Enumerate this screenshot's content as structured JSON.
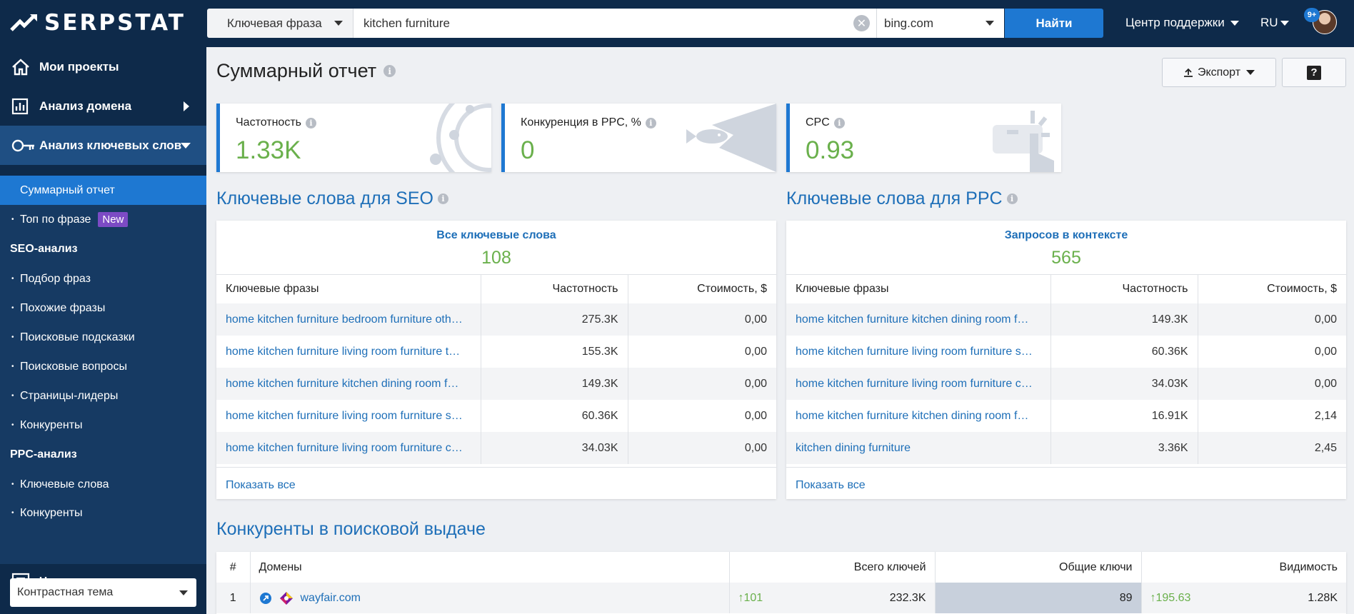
{
  "brand": {
    "name": "SERPSTAT"
  },
  "search": {
    "type_label": "Ключевая фраза",
    "query": "kitchen furniture",
    "engine": "bing.com",
    "find_label": "Найти"
  },
  "header": {
    "support_label": "Центр поддержки",
    "lang": "RU",
    "notifications": "9+"
  },
  "sidebar": {
    "projects": "Мои проекты",
    "domain_analysis": "Анализ домена",
    "keyword_analysis": "Анализ ключевых слов",
    "summary": "Суммарный отчет",
    "top_phrase": "Топ по фразе",
    "new_badge": "New",
    "seo_head": "SEO-анализ",
    "seo_items": [
      "Подбор фраз",
      "Похожие фразы",
      "Поисковые подсказки",
      "Поисковые вопросы",
      "Страницы-лидеры",
      "Конкуренты"
    ],
    "ppc_head": "PPC-анализ",
    "ppc_items": [
      "Ключевые слова",
      "Конкуренты"
    ],
    "chat": "Чат поддержки",
    "theme": "Контрастная тема"
  },
  "page": {
    "title": "Суммарный отчет",
    "export_label": "Экспорт",
    "help_label": "?"
  },
  "metrics": [
    {
      "label": "Частотность",
      "value": "1.33K"
    },
    {
      "label": "Конкуренция в PPC, %",
      "value": "0"
    },
    {
      "label": "CPC",
      "value": "0.93"
    }
  ],
  "seo": {
    "title": "Ключевые слова для SEO",
    "summary_label": "Все ключевые слова",
    "summary_count": "108",
    "columns": [
      "Ключевые фразы",
      "Частотность",
      "Стоимость, $"
    ],
    "rows": [
      {
        "kw": "home kitchen furniture bedroom furniture oth…",
        "freq": "275.3K",
        "cost": "0,00"
      },
      {
        "kw": "home kitchen furniture living room furniture t…",
        "freq": "155.3K",
        "cost": "0,00"
      },
      {
        "kw": "home kitchen furniture kitchen dining room f…",
        "freq": "149.3K",
        "cost": "0,00"
      },
      {
        "kw": "home kitchen furniture living room furniture s…",
        "freq": "60.36K",
        "cost": "0,00"
      },
      {
        "kw": "home kitchen furniture living room furniture c…",
        "freq": "34.03K",
        "cost": "0,00"
      }
    ],
    "show_all": "Показать все"
  },
  "ppc": {
    "title": "Ключевые слова для PPC",
    "summary_label": "Запросов в контексте",
    "summary_count": "565",
    "columns": [
      "Ключевые фразы",
      "Частотность",
      "Стоимость, $"
    ],
    "rows": [
      {
        "kw": "home kitchen furniture kitchen dining room f…",
        "freq": "149.3K",
        "cost": "0,00"
      },
      {
        "kw": "home kitchen furniture living room furniture s…",
        "freq": "60.36K",
        "cost": "0,00"
      },
      {
        "kw": "home kitchen furniture living room furniture c…",
        "freq": "34.03K",
        "cost": "0,00"
      },
      {
        "kw": "home kitchen furniture kitchen dining room f…",
        "freq": "16.91K",
        "cost": "2,14"
      },
      {
        "kw": "kitchen dining furniture",
        "freq": "3.36K",
        "cost": "2,45"
      }
    ],
    "show_all": "Показать все"
  },
  "competitors": {
    "title": "Конкуренты в поисковой выдаче",
    "columns": [
      "#",
      "Домены",
      "Всего ключей",
      "Общие ключи",
      "Видимость"
    ],
    "rows": [
      {
        "n": "1",
        "domain": "wayfair.com",
        "total_delta": "101",
        "total": "232.3K",
        "common": "89",
        "vis_delta": "195.63",
        "vis": "1.28K"
      }
    ]
  },
  "colors": {
    "accent": "#1e78d2",
    "sidebar": "#0e2a4a",
    "positive": "#6ab04c",
    "link": "#1e6fb8"
  }
}
